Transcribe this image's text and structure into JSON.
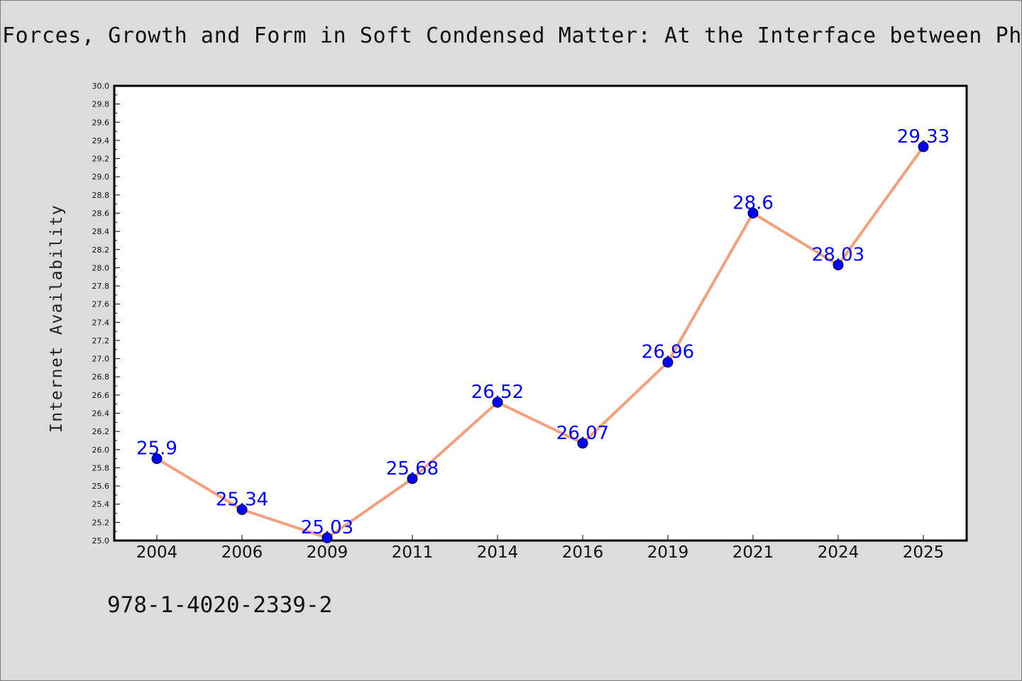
{
  "page": {
    "title": "Forces, Growth and Form in Soft Condensed Matter: At the Interface between Physics and Biology",
    "footer_text": "978-1-4020-2339-2"
  },
  "chart_data": {
    "type": "line",
    "title": "Forces, Growth and Form in Soft Condensed Matter: At the Interface between Physics and Biology",
    "xlabel": "",
    "ylabel": "Internet Availability",
    "categories": [
      "2004",
      "2006",
      "2009",
      "2011",
      "2014",
      "2016",
      "2019",
      "2021",
      "2024",
      "2025"
    ],
    "series": [
      {
        "values": [
          25.9,
          25.34,
          25.03,
          25.68,
          26.52,
          26.07,
          26.96,
          28.6,
          28.03,
          29.33
        ],
        "data_labels": [
          "25.9",
          "25.34",
          "25.03",
          "25.68",
          "26.52",
          "26.07",
          "26.96",
          "28.6",
          "28.03",
          "29.33"
        ]
      }
    ],
    "ylim": [
      25.0,
      30.0
    ],
    "yticks": [
      "25.0",
      "25.2",
      "25.4",
      "25.6",
      "25.8",
      "26.0",
      "26.2",
      "26.4",
      "26.6",
      "26.8",
      "27.0",
      "27.2",
      "27.4",
      "27.6",
      "27.8",
      "28.0",
      "28.2",
      "28.4",
      "28.6",
      "28.8",
      "29.0",
      "29.2",
      "29.4",
      "29.6",
      "29.8",
      "30.0"
    ],
    "grid": false,
    "legend": "none",
    "colors": {
      "line": "#f4a07c",
      "marker": "#0000ff",
      "marker_edge": "#000000",
      "data_label": "#0000ff",
      "plot_background": "#ffffff",
      "page_background": "#dcdcdc"
    }
  }
}
